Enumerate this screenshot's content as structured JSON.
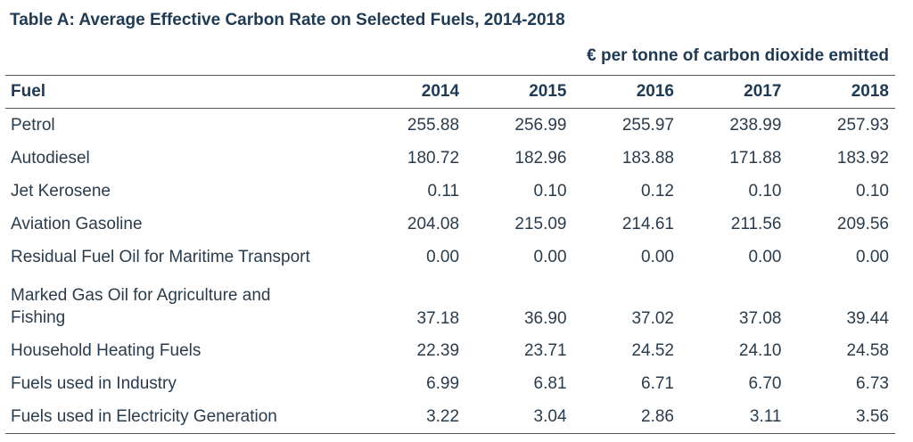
{
  "title": "Table A: Average Effective Carbon Rate on Selected Fuels, 2014-2018",
  "units": "€ per tonne of carbon dioxide emitted",
  "table": {
    "headers": [
      "Fuel",
      "2014",
      "2015",
      "2016",
      "2017",
      "2018"
    ],
    "rows": [
      {
        "fuel": "Petrol",
        "values": [
          "255.88",
          "256.99",
          "255.97",
          "238.99",
          "257.93"
        ]
      },
      {
        "fuel": "Autodiesel",
        "values": [
          "180.72",
          "182.96",
          "183.88",
          "171.88",
          "183.92"
        ]
      },
      {
        "fuel": "Jet Kerosene",
        "values": [
          "0.11",
          "0.10",
          "0.12",
          "0.10",
          "0.10"
        ]
      },
      {
        "fuel": "Aviation Gasoline",
        "values": [
          "204.08",
          "215.09",
          "214.61",
          "211.56",
          "209.56"
        ]
      },
      {
        "fuel": "Residual Fuel Oil for Maritime Transport",
        "values": [
          "0.00",
          "0.00",
          "0.00",
          "0.00",
          "0.00"
        ]
      },
      {
        "fuel": "Marked Gas Oil for Agriculture and Fishing",
        "values": [
          "37.18",
          "36.90",
          "37.02",
          "37.08",
          "39.44"
        ]
      },
      {
        "fuel": "Household Heating Fuels",
        "values": [
          "22.39",
          "23.71",
          "24.52",
          "24.10",
          "24.58"
        ]
      },
      {
        "fuel": "Fuels used in Industry",
        "values": [
          "6.99",
          "6.81",
          "6.71",
          "6.70",
          "6.73"
        ]
      },
      {
        "fuel": "Fuels used in Electricity Generation",
        "values": [
          "3.22",
          "3.04",
          "2.86",
          "3.11",
          "3.56"
        ]
      }
    ]
  },
  "colors": {
    "heading": "#1f3a52",
    "text": "#2a3c4c",
    "rule": "#555555"
  }
}
